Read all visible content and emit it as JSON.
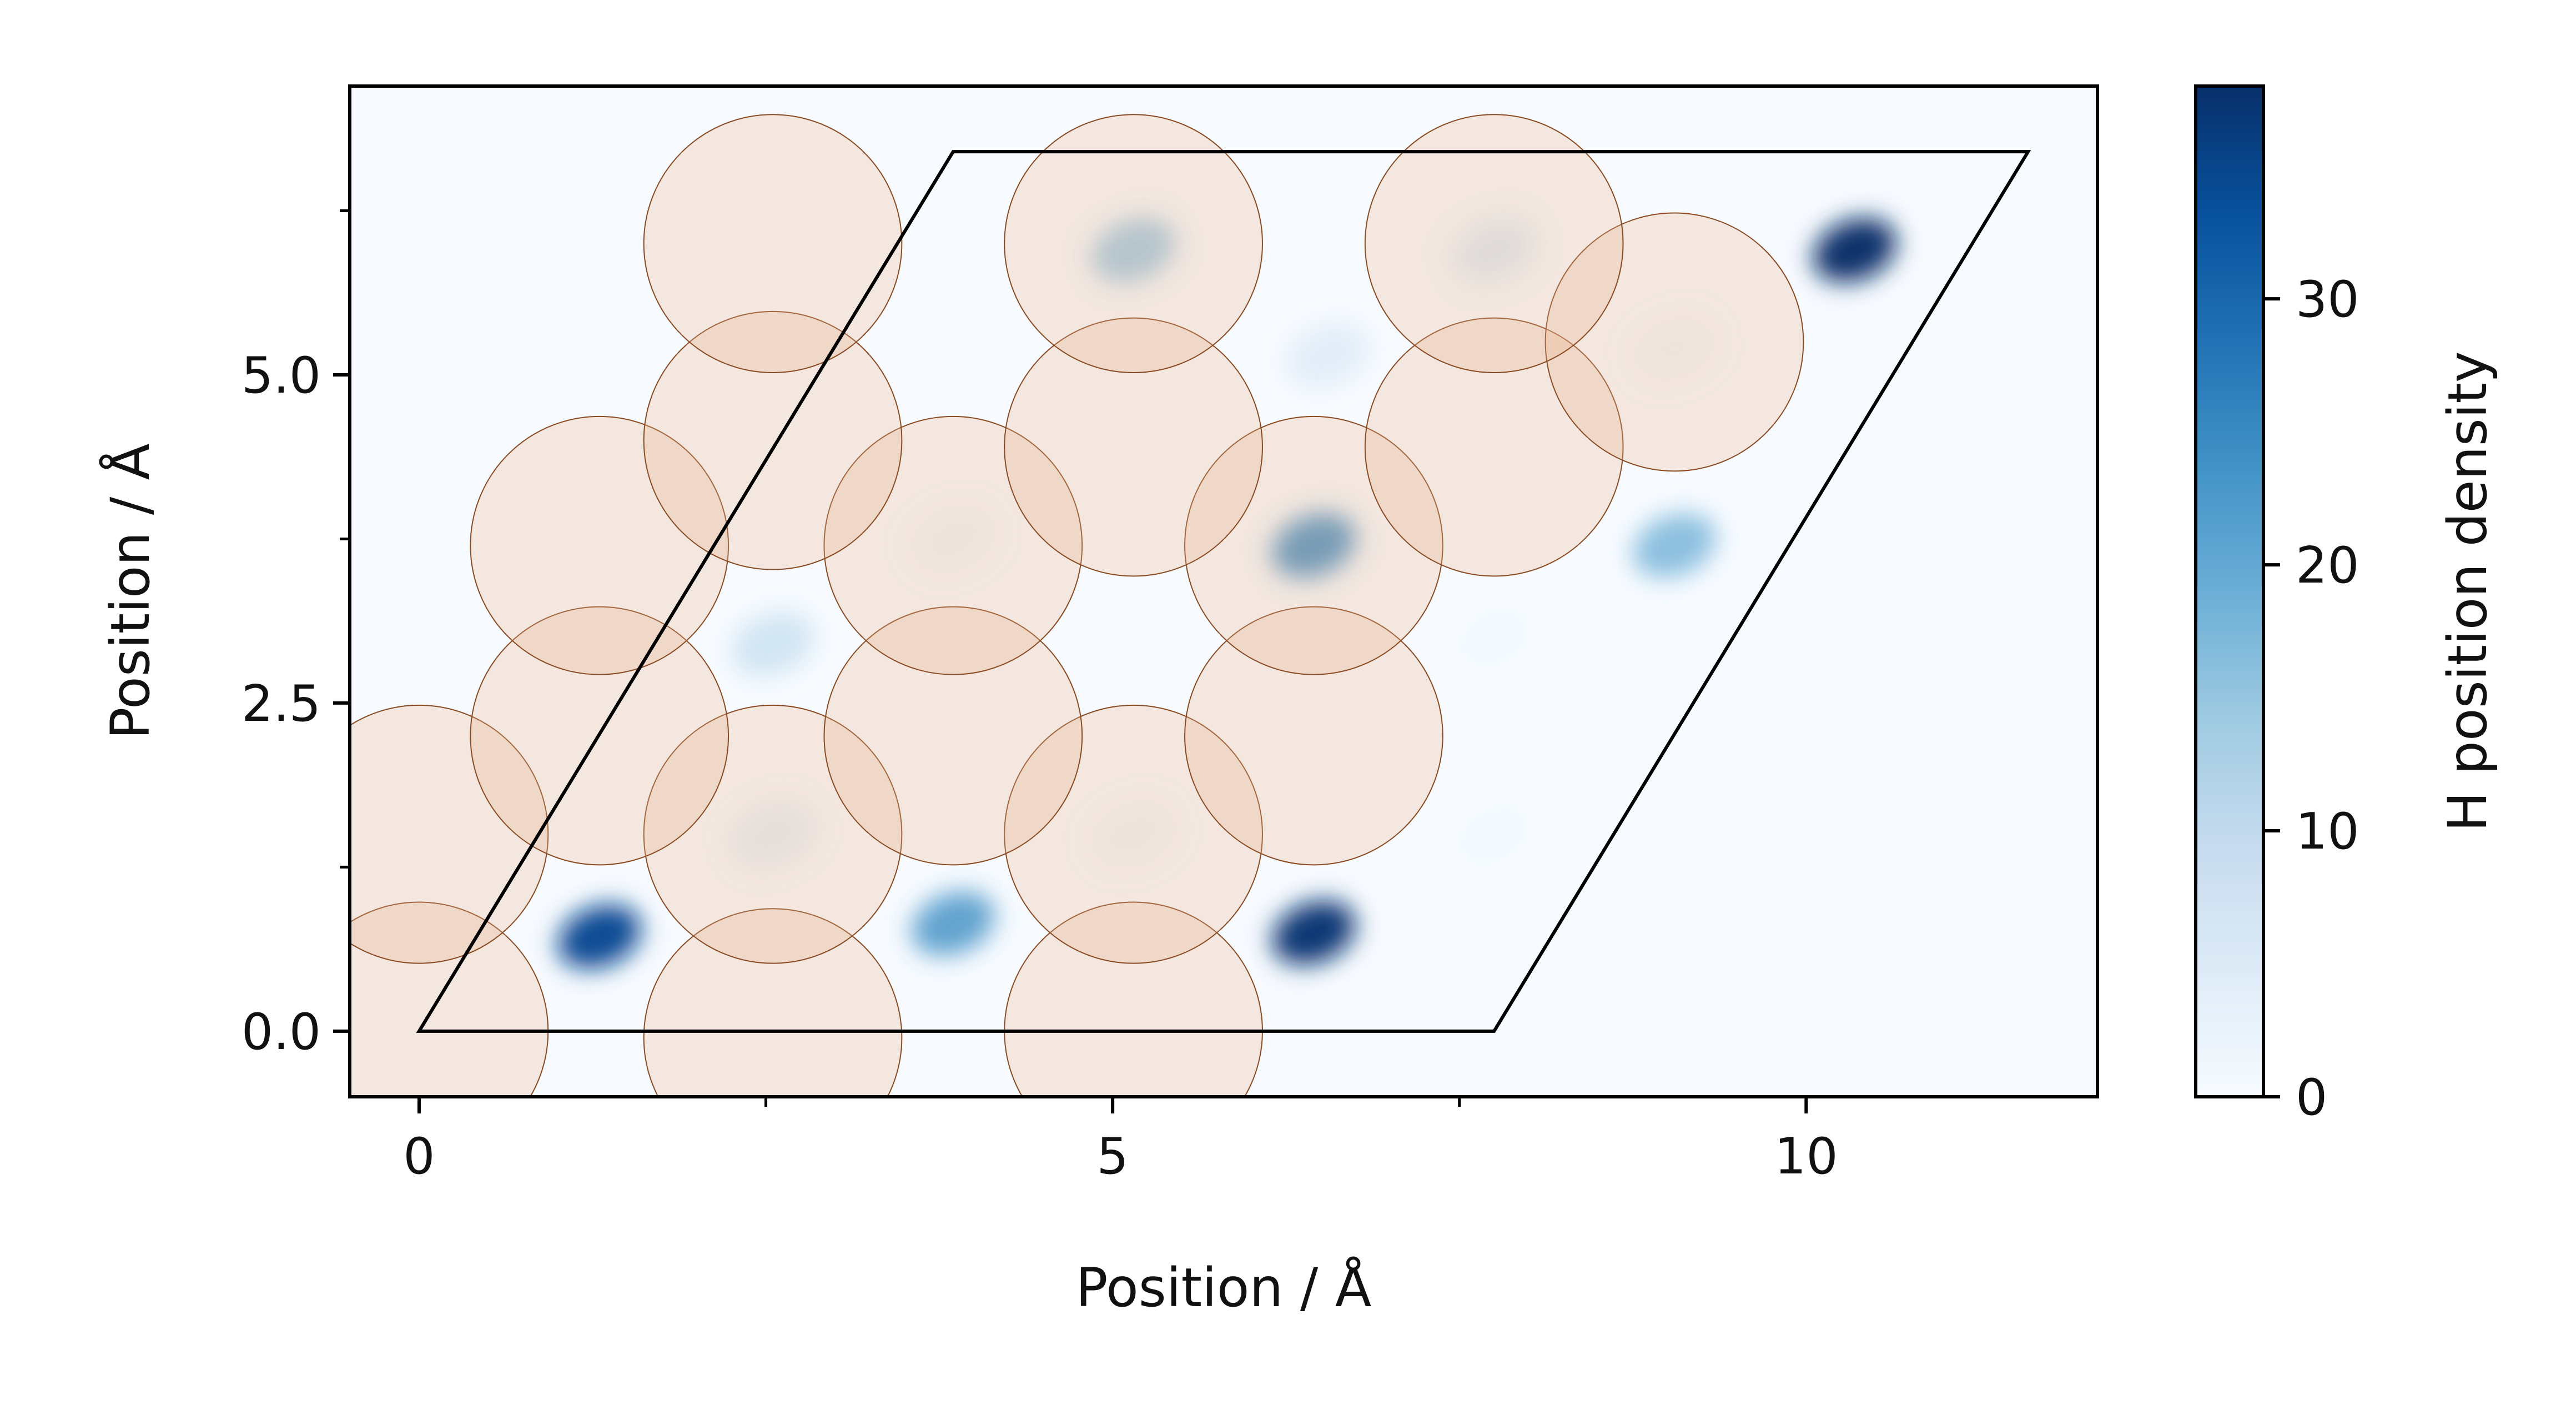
{
  "chart_data": {
    "type": "heatmap",
    "title": "",
    "xlabel": "Position / Å",
    "ylabel": "Position / Å",
    "colorbar_label": "H position density",
    "xlim": [
      -0.5,
      12.1
    ],
    "ylim": [
      -0.5,
      7.2
    ],
    "x_ticks": [
      0,
      5,
      10
    ],
    "x_tick_labels": [
      "0",
      "5",
      "10"
    ],
    "x_minor_ticks": [
      2.5,
      7.5
    ],
    "y_ticks": [
      0.0,
      2.5,
      5.0
    ],
    "y_tick_labels": [
      "0.0",
      "2.5",
      "5.0"
    ],
    "y_minor_ticks": [
      1.25,
      3.75,
      6.25
    ],
    "colorbar_range": [
      0,
      38
    ],
    "colorbar_ticks": [
      0,
      10,
      20,
      30
    ],
    "colorbar_tick_labels": [
      "0",
      "10",
      "20",
      "30"
    ],
    "colormap": "Blues",
    "colormap_stops": [
      "#f7fbff",
      "#deebf7",
      "#c6dbef",
      "#9ecae1",
      "#6baed6",
      "#4292c6",
      "#2171b5",
      "#08519c",
      "#08306b"
    ],
    "unit_cell": [
      [
        0,
        0
      ],
      [
        7.75,
        0
      ],
      [
        11.6,
        6.7
      ],
      [
        3.85,
        6.7
      ]
    ],
    "atom_radius": 0.93,
    "atom_fill": "#e9b48c",
    "atom_fill_opacity": 0.28,
    "atom_edge": "#8a4a22",
    "atoms": [
      [
        0,
        0
      ],
      [
        2.55,
        -0.05
      ],
      [
        5.15,
        0
      ],
      [
        0,
        1.5
      ],
      [
        2.55,
        1.5
      ],
      [
        5.15,
        1.5
      ],
      [
        1.3,
        2.25
      ],
      [
        3.85,
        2.25
      ],
      [
        6.45,
        2.25
      ],
      [
        1.3,
        3.7
      ],
      [
        3.85,
        3.7
      ],
      [
        6.45,
        3.7
      ],
      [
        2.55,
        4.5
      ],
      [
        5.15,
        4.45
      ],
      [
        7.75,
        4.45
      ],
      [
        9.05,
        5.25
      ],
      [
        2.55,
        6.0
      ],
      [
        5.15,
        6.0
      ],
      [
        7.75,
        6.0
      ]
    ],
    "density_peaks": [
      {
        "x": 1.3,
        "y": 0.72,
        "value": 34
      },
      {
        "x": 3.85,
        "y": 0.82,
        "value": 24
      },
      {
        "x": 6.45,
        "y": 0.75,
        "value": 37
      },
      {
        "x": 2.55,
        "y": 1.5,
        "value": 8
      },
      {
        "x": 5.15,
        "y": 1.5,
        "value": 4
      },
      {
        "x": 7.75,
        "y": 1.5,
        "value": 2
      },
      {
        "x": 2.55,
        "y": 2.95,
        "value": 12
      },
      {
        "x": 3.85,
        "y": 3.75,
        "value": 4
      },
      {
        "x": 6.45,
        "y": 3.7,
        "value": 26
      },
      {
        "x": 9.05,
        "y": 3.7,
        "value": 20
      },
      {
        "x": 7.75,
        "y": 3.0,
        "value": 2
      },
      {
        "x": 6.55,
        "y": 5.15,
        "value": 9
      },
      {
        "x": 9.05,
        "y": 5.2,
        "value": 3
      },
      {
        "x": 5.15,
        "y": 5.95,
        "value": 18
      },
      {
        "x": 7.75,
        "y": 5.95,
        "value": 10
      },
      {
        "x": 10.35,
        "y": 5.95,
        "value": 38
      }
    ]
  }
}
